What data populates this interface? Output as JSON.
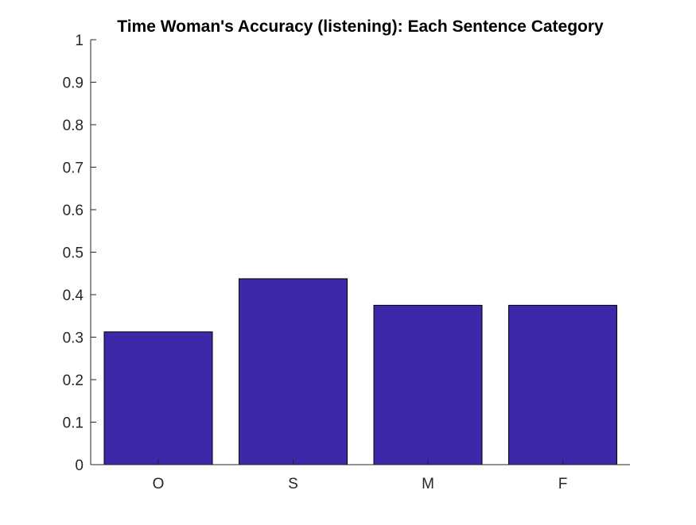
{
  "chart_data": {
    "type": "bar",
    "title": "Time Woman's Accuracy (listening): Each Sentence Category",
    "xlabel": "",
    "ylabel": "",
    "categories": [
      "O",
      "S",
      "M",
      "F"
    ],
    "values": [
      0.3125,
      0.4375,
      0.375,
      0.375
    ],
    "ylim": [
      0,
      1
    ],
    "yticks": [
      0,
      0.1,
      0.2,
      0.3,
      0.4,
      0.5,
      0.6,
      0.7,
      0.8,
      0.9,
      1
    ],
    "ytick_labels": [
      "0",
      "0.1",
      "0.2",
      "0.3",
      "0.4",
      "0.5",
      "0.6",
      "0.7",
      "0.8",
      "0.9",
      "1"
    ],
    "grid": false,
    "legend": "none",
    "colors": {
      "bar_fill": "#3c28a8",
      "bar_edge": "#000000",
      "axis": "#262626"
    }
  }
}
